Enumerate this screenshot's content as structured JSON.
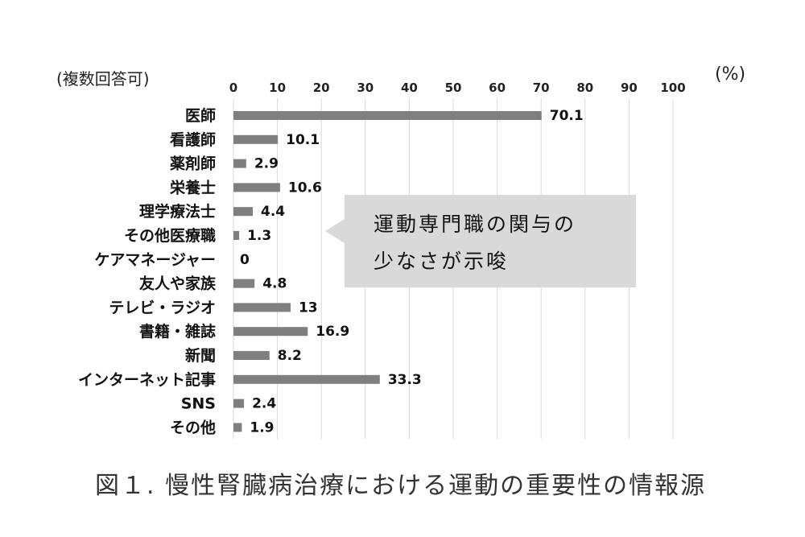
{
  "note": "(複数回答可)",
  "unit": "(%)",
  "callout": {
    "line1": "運動専門職の関与の",
    "line2": "少なさが示唆"
  },
  "caption": "図１. 慢性腎臓病治療における運動の重要性の情報源",
  "chart_data": {
    "type": "bar",
    "orientation": "horizontal",
    "categories": [
      "医師",
      "看護師",
      "薬剤師",
      "栄養士",
      "理学療法士",
      "その他医療職",
      "ケアマネージャー",
      "友人や家族",
      "テレビ・ラジオ",
      "書籍・雑誌",
      "新聞",
      "インターネット記事",
      "SNS",
      "その他"
    ],
    "values": [
      70.1,
      10.1,
      2.9,
      10.6,
      4.4,
      1.3,
      0,
      4.8,
      13,
      16.9,
      8.2,
      33.3,
      2.4,
      1.9
    ],
    "value_labels": [
      "70.1",
      "10.1",
      "2.9",
      "10.6",
      "4.4",
      "1.3",
      "0",
      "4.8",
      "13",
      "16.9",
      "8.2",
      "33.3",
      "2.4",
      "1.9"
    ],
    "xlim": [
      0,
      100
    ],
    "xticks": [
      "0",
      "10",
      "20",
      "30",
      "40",
      "50",
      "60",
      "70",
      "80",
      "90",
      "100"
    ],
    "axis_position": "top",
    "grid": true,
    "bar_color": "#7f7f7f",
    "grid_color": "#d9d9d9"
  }
}
